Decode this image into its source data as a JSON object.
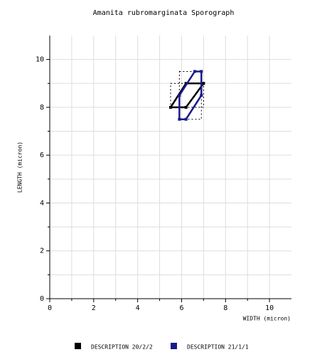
{
  "chart_data": {
    "type": "polygon",
    "title": "Amanita rubromarginata Sporograph",
    "x_label": "WIDTH (micron)",
    "y_label": "LENGTH (micron)",
    "xlim": [
      0,
      11
    ],
    "ylim": [
      0,
      11
    ],
    "xticks": [
      0,
      2,
      4,
      6,
      8,
      10
    ],
    "yticks": [
      0,
      2,
      4,
      6,
      8,
      10
    ],
    "xminorticks": [
      1,
      3,
      5,
      7,
      9
    ],
    "yminorticks": [
      1,
      3,
      5,
      7,
      9
    ],
    "grid": true,
    "legend": "bottom",
    "series": [
      {
        "name": "DESCRIPTION 20/2/2",
        "color": "#000000",
        "x": [
          5.5,
          6.2,
          7,
          6.2
        ],
        "values": [
          8,
          8,
          9,
          9
        ]
      },
      {
        "name": "DESCRIPTION 21/1/1",
        "color": "#1a1a8c",
        "x": [
          5.9,
          6.2,
          6.9,
          6.9,
          6.6,
          5.9
        ],
        "values": [
          7.5,
          7.5,
          8.5,
          9.5,
          9.5,
          8.5
        ]
      }
    ]
  }
}
